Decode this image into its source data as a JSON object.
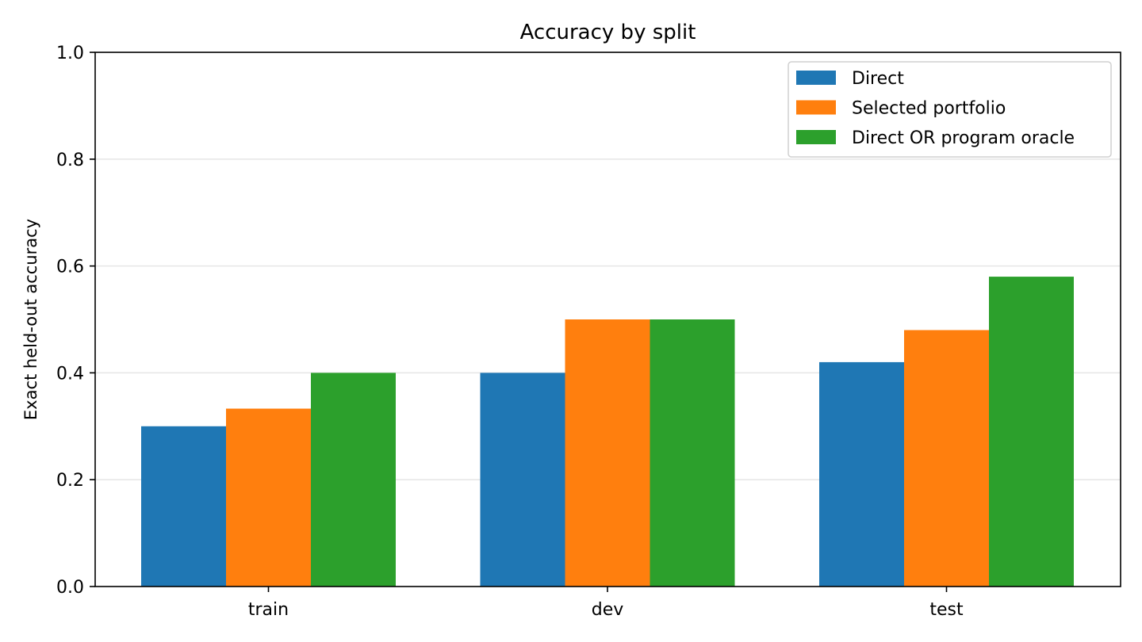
{
  "chart_data": {
    "type": "bar",
    "title": "Accuracy by split",
    "xlabel": "",
    "ylabel": "Exact held-out accuracy",
    "categories": [
      "train",
      "dev",
      "test"
    ],
    "series": [
      {
        "name": "Direct",
        "color": "#1f77b4",
        "values": [
          0.3,
          0.4,
          0.42
        ]
      },
      {
        "name": "Selected portfolio",
        "color": "#ff7f0e",
        "values": [
          0.333,
          0.5,
          0.48
        ]
      },
      {
        "name": "Direct OR program oracle",
        "color": "#2ca02c",
        "values": [
          0.4,
          0.5,
          0.58
        ]
      }
    ],
    "ylim": [
      0,
      1.0
    ],
    "yticks": [
      "0.0",
      "0.2",
      "0.4",
      "0.6",
      "0.8",
      "1.0"
    ],
    "grid": "y",
    "legend": "top-right"
  }
}
